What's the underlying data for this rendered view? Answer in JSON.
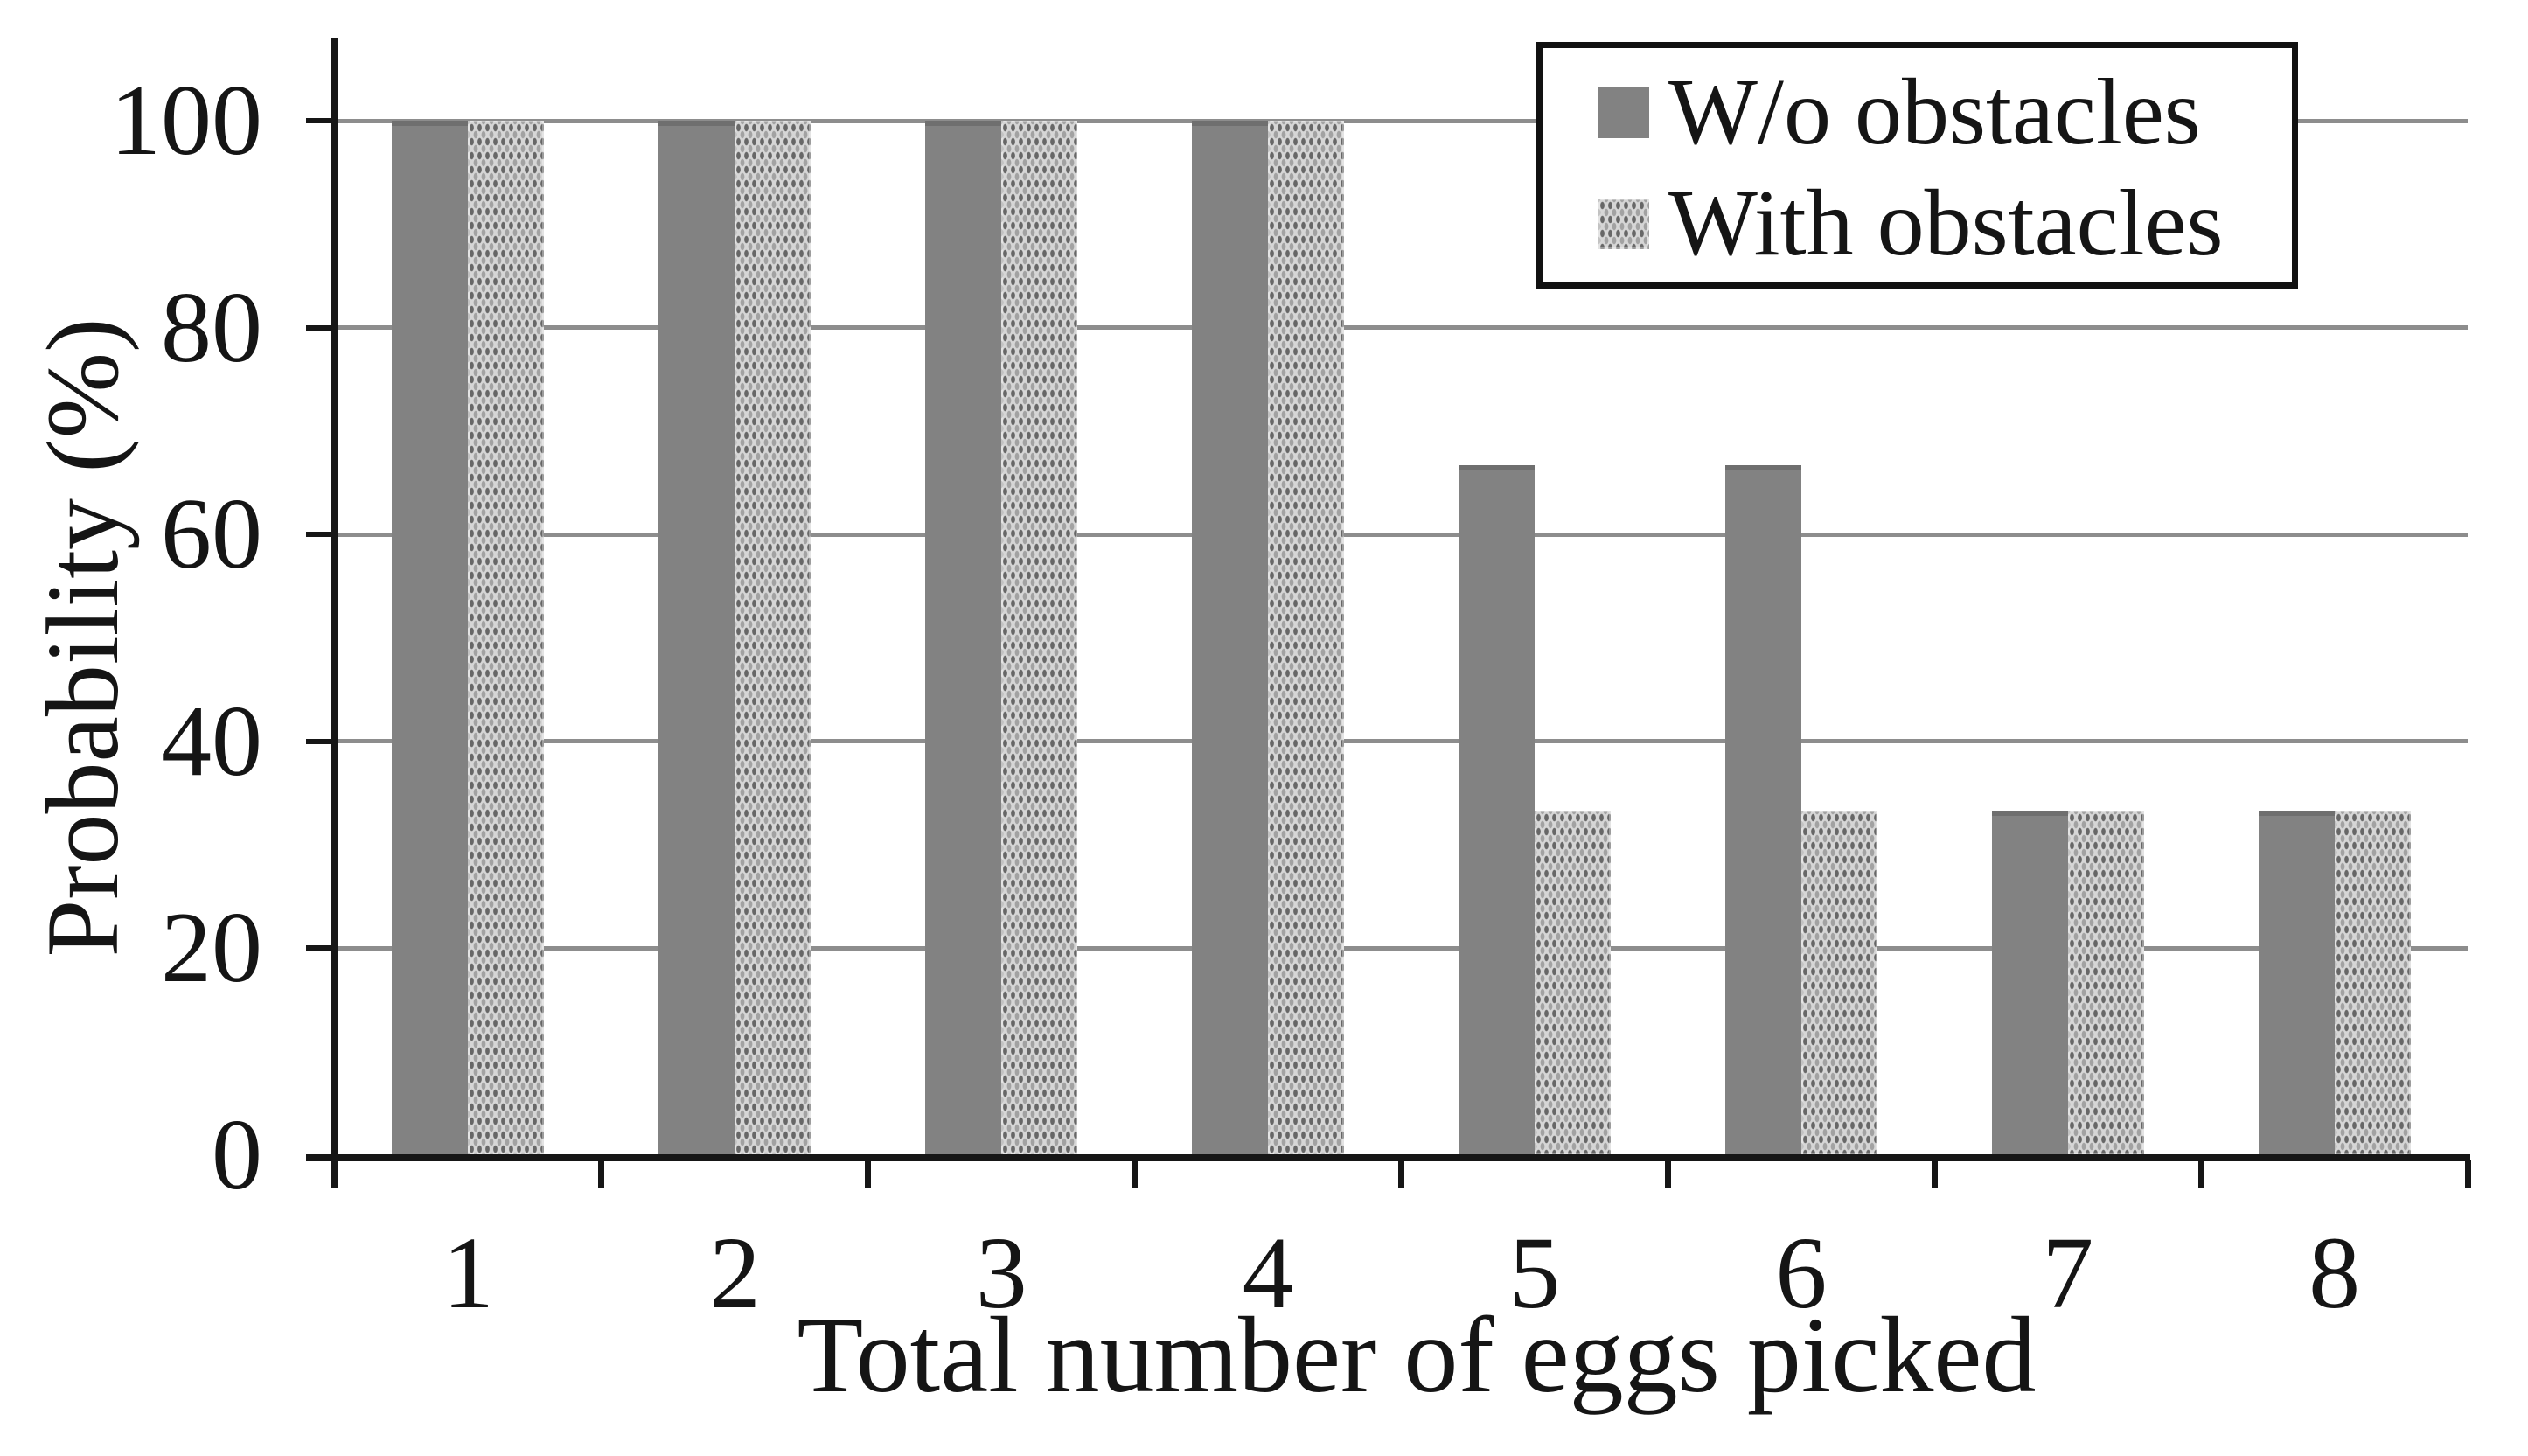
{
  "chart_data": {
    "type": "bar",
    "title": "",
    "categories": [
      "1",
      "2",
      "3",
      "4",
      "5",
      "6",
      "7",
      "8"
    ],
    "series": [
      {
        "name": "W/o obstacles",
        "style": "solid",
        "values": [
          100,
          100,
          100,
          100,
          66.7,
          66.7,
          33.3,
          33.3
        ]
      },
      {
        "name": "With obstacles",
        "style": "dotted",
        "values": [
          100,
          100,
          100,
          100,
          33.3,
          33.3,
          33.3,
          33.3
        ]
      }
    ],
    "xlabel": "Total number of eggs picked",
    "ylabel": "Probability (%)",
    "ylim": [
      0,
      100
    ],
    "yticks": [
      "0",
      "20",
      "40",
      "60",
      "80",
      "100"
    ],
    "grid": "horizontal",
    "legend_position": "top-right"
  },
  "colors": {
    "bar_solid": "#828282",
    "bar_dotted_bg": "#d6d6d6",
    "bar_dotted_dots": "#676767",
    "gridline": "#8d8d8d",
    "axis": "#161616",
    "legend_border": "#111111",
    "text": "#151515",
    "background": "#ffffff"
  }
}
